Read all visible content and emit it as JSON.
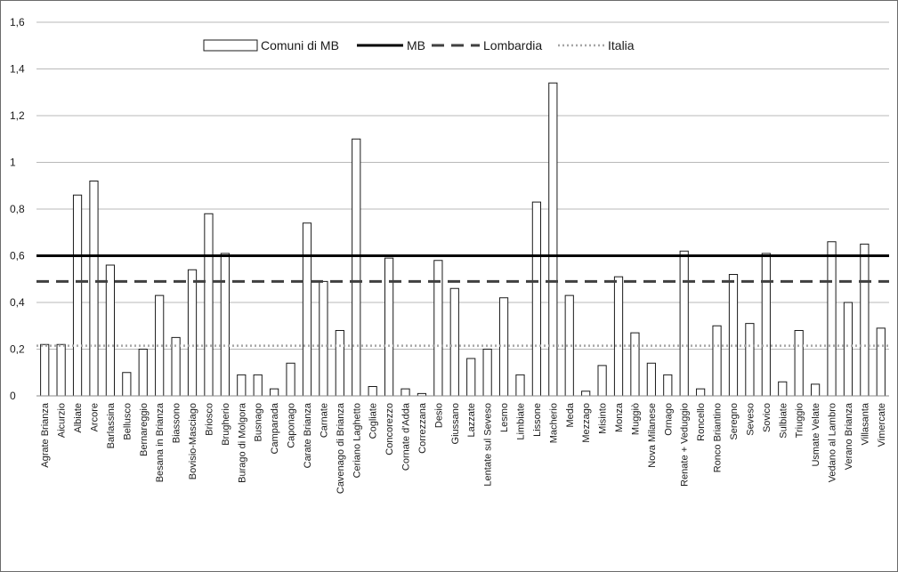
{
  "chart_data": {
    "type": "bar",
    "categories": [
      "Agrate Brianza",
      "Aicurzio",
      "Albiate",
      "Arcore",
      "Barlassina",
      "Bellusco",
      "Bernareggio",
      "Besana in Brianza",
      "Biassono",
      "Bovisio-Masciago",
      "Briosco",
      "Brugherio",
      "Burago di Molgora",
      "Busnago",
      "Camparada",
      "Caponago",
      "Carate Brianza",
      "Carnate",
      "Cavenago di Brianza",
      "Ceriano Laghetto",
      "Cogliate",
      "Concorezzo",
      "Cornate d'Adda",
      "Correzzana",
      "Desio",
      "Giussano",
      "Lazzate",
      "Lentate sul Seveso",
      "Lesmo",
      "Limbiate",
      "Lissone",
      "Macherio",
      "Meda",
      "Mezzago",
      "Misinto",
      "Monza",
      "Muggiò",
      "Nova Milanese",
      "Ornago",
      "Renate + Veduggio",
      "Roncello",
      "Ronco Briantino",
      "Seregno",
      "Seveso",
      "Sovico",
      "Sulbiate",
      "Triuggio",
      "Usmate Velate",
      "Vedano al Lambro",
      "Verano Brianza",
      "Villasanta",
      "Vimercate"
    ],
    "series": [
      {
        "name": "Comuni di MB",
        "values": [
          0.22,
          0.22,
          0.86,
          0.92,
          0.56,
          0.1,
          0.2,
          0.43,
          0.25,
          0.54,
          0.78,
          0.61,
          0.09,
          0.09,
          0.03,
          0.14,
          0.74,
          0.49,
          0.28,
          1.1,
          0.04,
          0.59,
          0.03,
          0.01,
          0.58,
          0.46,
          0.16,
          0.2,
          0.42,
          0.09,
          0.83,
          1.34,
          0.43,
          0.02,
          0.13,
          0.51,
          0.27,
          0.14,
          0.09,
          0.62,
          0.03,
          0.3,
          0.52,
          0.31,
          0.61,
          0.06,
          0.28,
          0.05,
          0.66,
          0.4,
          0.65,
          0.29
        ]
      }
    ],
    "reference_lines": [
      {
        "name": "MB",
        "value": 0.6,
        "style": "solid",
        "color": "#000000"
      },
      {
        "name": "Lombardia",
        "value": 0.49,
        "style": "dashed",
        "color": "#404040"
      },
      {
        "name": "Italia",
        "value": 0.215,
        "style": "dotted",
        "color": "#a6a6a6"
      }
    ],
    "ylim": [
      0,
      1.6
    ],
    "yticks": [
      0,
      0.2,
      0.4,
      0.6,
      0.8,
      1,
      1.2,
      1.4,
      1.6
    ],
    "ytick_labels": [
      "0",
      "0,2",
      "0,4",
      "0,6",
      "0,8",
      "1",
      "1,2",
      "1,4",
      "1,6"
    ],
    "grid": true,
    "legend_position": "top-center",
    "title": "",
    "xlabel": "",
    "ylabel": ""
  }
}
